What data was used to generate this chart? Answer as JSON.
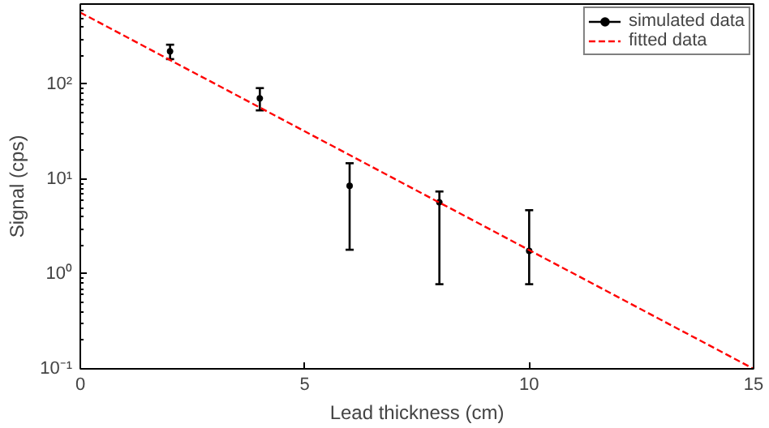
{
  "chart_data": {
    "type": "scatter",
    "xlabel": "Lead thickness (cm)",
    "ylabel": "Signal (cps)",
    "log": "y",
    "xlim": [
      0,
      15
    ],
    "ylim": [
      0.1,
      700
    ],
    "xticks": [
      0,
      5,
      10,
      15
    ],
    "yticks": [
      {
        "value": 0.1,
        "label": "10⁻¹"
      },
      {
        "value": 1,
        "label": "10⁰"
      },
      {
        "value": 10,
        "label": "10¹"
      },
      {
        "value": 100,
        "label": "10²"
      }
    ],
    "grid": false,
    "legend": "top right",
    "series": [
      {
        "name": "simulated data",
        "color": "#000000",
        "marker": "circle",
        "x": [
          2,
          4,
          6,
          8,
          10
        ],
        "values": [
          222,
          71,
          8.5,
          5.7,
          1.75
        ],
        "errors": [
          [
            184,
            261
          ],
          [
            53,
            91
          ],
          [
            1.8,
            14.7
          ],
          [
            0.78,
            7.4
          ],
          [
            0.78,
            4.7
          ]
        ]
      },
      {
        "name": "fitted data",
        "type": "line",
        "color": "#ff0000",
        "line_style": "dashed",
        "x": [
          0,
          15
        ],
        "values": [
          570,
          0.1
        ]
      }
    ]
  }
}
